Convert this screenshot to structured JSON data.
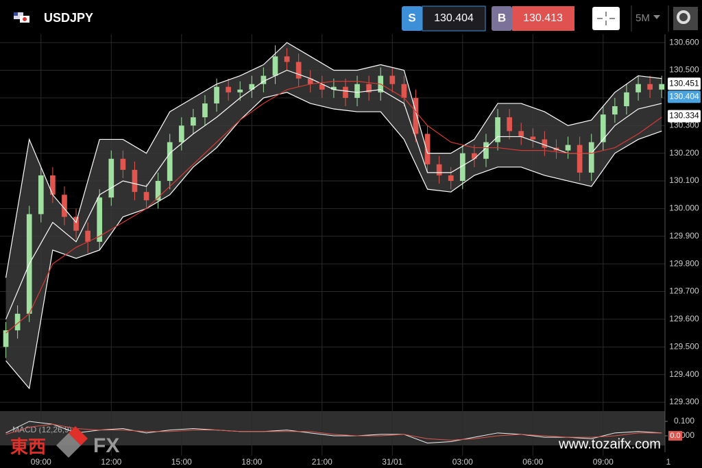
{
  "header": {
    "symbol": "USDJPY",
    "sell_label": "S",
    "sell_price": "130.404",
    "buy_label": "B",
    "buy_price": "130.413",
    "timeframe": "5M"
  },
  "chart_data": {
    "type": "candlestick",
    "x": [
      7.5,
      8,
      8.5,
      9,
      9.5,
      10,
      10.5,
      11,
      11.5,
      12,
      12.5,
      13,
      13.5,
      14,
      14.5,
      15,
      15.5,
      16,
      16.5,
      17,
      17.5,
      18,
      18.5,
      19,
      19.5,
      20,
      20.5,
      21,
      21.5,
      22,
      22.5,
      23,
      23.5,
      24,
      24.5,
      25,
      25.5,
      26,
      26.5,
      27,
      27.5,
      28,
      28.5,
      29,
      29.5,
      30,
      30.5,
      31,
      31.5,
      32,
      32.5,
      33,
      33.5,
      34,
      34.5,
      35,
      35.5
    ],
    "open": [
      129.5,
      129.56,
      129.62,
      129.98,
      130.12,
      130.05,
      129.97,
      129.92,
      129.88,
      130.04,
      130.18,
      130.14,
      130.06,
      130.03,
      130.1,
      130.24,
      130.3,
      130.33,
      130.38,
      130.44,
      130.42,
      130.43,
      130.45,
      130.48,
      130.55,
      130.53,
      130.47,
      130.45,
      130.43,
      130.44,
      130.4,
      130.45,
      130.42,
      130.48,
      130.45,
      130.4,
      130.27,
      130.16,
      130.12,
      130.1,
      130.2,
      130.18,
      130.24,
      130.33,
      130.28,
      130.26,
      130.25,
      130.22,
      130.21,
      130.23,
      130.13,
      130.24,
      130.34,
      130.37,
      130.42,
      130.45,
      130.43
    ],
    "high": [
      129.59,
      129.65,
      130.01,
      130.15,
      130.15,
      130.08,
      130.0,
      129.95,
      130.07,
      130.21,
      130.21,
      130.17,
      130.09,
      130.13,
      130.27,
      130.33,
      130.36,
      130.41,
      130.47,
      130.47,
      130.46,
      130.48,
      130.51,
      130.59,
      130.58,
      130.56,
      130.5,
      130.48,
      130.47,
      130.47,
      130.48,
      130.48,
      130.51,
      130.51,
      130.48,
      130.43,
      130.3,
      130.19,
      130.15,
      130.23,
      130.23,
      130.27,
      130.36,
      130.36,
      130.31,
      130.29,
      130.28,
      130.25,
      130.26,
      130.26,
      130.27,
      130.37,
      130.4,
      130.45,
      130.48,
      130.48,
      130.48
    ],
    "low": [
      129.46,
      129.53,
      129.59,
      129.95,
      130.02,
      129.94,
      129.89,
      129.84,
      129.85,
      130.01,
      130.11,
      130.03,
      130.0,
      130.0,
      130.07,
      130.21,
      130.27,
      130.3,
      130.35,
      130.39,
      130.39,
      130.4,
      130.42,
      130.45,
      130.5,
      130.44,
      130.42,
      130.4,
      130.4,
      130.37,
      130.37,
      130.39,
      130.39,
      130.42,
      130.37,
      130.24,
      130.13,
      130.09,
      130.07,
      130.07,
      130.15,
      130.15,
      130.21,
      130.25,
      130.23,
      130.22,
      130.19,
      130.18,
      130.18,
      130.1,
      130.1,
      130.21,
      130.31,
      130.34,
      130.39,
      130.4,
      130.4
    ],
    "close": [
      129.56,
      129.62,
      129.98,
      130.12,
      130.05,
      129.97,
      129.92,
      129.88,
      130.04,
      130.18,
      130.14,
      130.06,
      130.03,
      130.1,
      130.24,
      130.3,
      130.33,
      130.38,
      130.44,
      130.42,
      130.43,
      130.45,
      130.48,
      130.55,
      130.53,
      130.47,
      130.45,
      130.43,
      130.44,
      130.4,
      130.45,
      130.42,
      130.48,
      130.45,
      130.4,
      130.27,
      130.16,
      130.12,
      130.1,
      130.2,
      130.18,
      130.24,
      130.33,
      130.28,
      130.26,
      130.25,
      130.22,
      130.21,
      130.23,
      130.13,
      130.24,
      130.34,
      130.37,
      130.42,
      130.45,
      130.43,
      130.45
    ],
    "up_color": "#9fe0a0",
    "down_color": "#e0564f",
    "overlay_x": [
      7.5,
      8.5,
      9.5,
      10.5,
      11.5,
      12.5,
      13.5,
      14.5,
      15.5,
      16.5,
      17.5,
      18.5,
      19.5,
      20.5,
      21.5,
      22.5,
      23.5,
      24.5,
      25.5,
      26.5,
      27.5,
      28.5,
      29.5,
      30.5,
      31.5,
      32.5,
      33.5,
      34.5,
      35.5
    ],
    "overlays": [
      {
        "color": "#ffffff",
        "values": [
          129.75,
          130.25,
          130.05,
          129.95,
          130.25,
          130.25,
          130.2,
          130.35,
          130.4,
          130.45,
          130.48,
          130.52,
          130.6,
          130.55,
          130.5,
          130.5,
          130.52,
          130.5,
          130.2,
          130.2,
          130.25,
          130.38,
          130.38,
          130.35,
          130.3,
          130.32,
          130.42,
          130.48,
          130.47
        ]
      },
      {
        "color": "#ffffff",
        "values": [
          129.6,
          129.8,
          129.95,
          129.88,
          130.05,
          130.1,
          130.08,
          130.2,
          130.27,
          130.33,
          130.4,
          130.46,
          130.5,
          130.47,
          130.43,
          130.42,
          130.43,
          130.38,
          130.13,
          130.13,
          130.18,
          130.26,
          130.26,
          130.23,
          130.2,
          130.2,
          130.3,
          130.36,
          130.38
        ]
      },
      {
        "color": "#ffffff",
        "values": [
          129.45,
          129.35,
          129.85,
          129.82,
          129.85,
          129.97,
          130.0,
          130.05,
          130.15,
          130.22,
          130.32,
          130.4,
          130.42,
          130.38,
          130.36,
          130.35,
          130.35,
          130.25,
          130.07,
          130.06,
          130.12,
          130.15,
          130.15,
          130.12,
          130.1,
          130.08,
          130.2,
          130.25,
          130.28
        ]
      },
      {
        "color": "#d63a33",
        "values": [
          129.55,
          129.62,
          129.8,
          129.86,
          129.9,
          129.95,
          130.0,
          130.08,
          130.16,
          130.24,
          130.32,
          130.38,
          130.43,
          130.45,
          130.46,
          130.46,
          130.45,
          130.4,
          130.3,
          130.24,
          130.22,
          130.22,
          130.21,
          130.21,
          130.2,
          130.2,
          130.22,
          130.27,
          130.33
        ]
      }
    ],
    "band_fill": "#3a3a3a",
    "xlim": [
      7.25,
      35.64
    ],
    "ylim": [
      129.268,
      130.63
    ],
    "xticks": [
      {
        "value": 9,
        "label": "09:00"
      },
      {
        "value": 12,
        "label": "12:00"
      },
      {
        "value": 15,
        "label": "15:00"
      },
      {
        "value": 18,
        "label": "18:00"
      },
      {
        "value": 21,
        "label": "21:00"
      },
      {
        "value": 24,
        "label": "31/01"
      },
      {
        "value": 27,
        "label": "03:00"
      },
      {
        "value": 30,
        "label": "06:00"
      },
      {
        "value": 33,
        "label": "09:00"
      },
      {
        "value": 36,
        "label": "1"
      }
    ],
    "yticks": [
      {
        "value": 129.3,
        "label": "129.300"
      },
      {
        "value": 129.4,
        "label": "129.400"
      },
      {
        "value": 129.5,
        "label": "129.500"
      },
      {
        "value": 129.6,
        "label": "129.600"
      },
      {
        "value": 129.7,
        "label": "129.700"
      },
      {
        "value": 129.8,
        "label": "129.800"
      },
      {
        "value": 129.9,
        "label": "129.900"
      },
      {
        "value": 130,
        "label": "130.000"
      },
      {
        "value": 130.1,
        "label": "130.100"
      },
      {
        "value": 130.2,
        "label": "130.200"
      },
      {
        "value": 130.3,
        "label": "130.300"
      },
      {
        "value": 130.4,
        "label": "130.400"
      },
      {
        "value": 130.5,
        "label": "130.500"
      },
      {
        "value": 130.6,
        "label": "130.600"
      }
    ],
    "grid": true,
    "price_labels": [
      {
        "value": 130.451,
        "label": "130.451",
        "color": "#ffffff",
        "text_color": "#000000"
      },
      {
        "value": 130.404,
        "label": "130.404",
        "color": "#4aa3df",
        "text_color": "#ffffff"
      },
      {
        "value": 130.334,
        "label": "130.334",
        "color": "#ffffff",
        "text_color": "#000000"
      }
    ],
    "macd": {
      "title": "MACD (12,26,9)",
      "ylim": [
        -0.071,
        0.133
      ],
      "yticks": [
        {
          "value": 0.1,
          "label": "0.100"
        },
        {
          "value": 0,
          "label": "0.000"
        }
      ],
      "current": {
        "value": 0,
        "label": "0.0"
      },
      "series": [
        {
          "color": "#f0f0f0",
          "values": [
            0.02,
            0.1,
            0.08,
            0.02,
            0.04,
            0.05,
            0.02,
            0.04,
            0.05,
            0.04,
            0.03,
            0.03,
            0.04,
            0.02,
            0.0,
            0.0,
            0.01,
            0.01,
            -0.05,
            -0.04,
            -0.01,
            0.02,
            0.01,
            -0.01,
            -0.01,
            -0.02,
            0.02,
            0.03,
            0.02
          ]
        },
        {
          "color": "#e0564f",
          "values": [
            0.01,
            0.06,
            0.08,
            0.05,
            0.04,
            0.04,
            0.03,
            0.03,
            0.04,
            0.04,
            0.03,
            0.03,
            0.03,
            0.03,
            0.01,
            0.0,
            0.0,
            0.01,
            -0.02,
            -0.03,
            -0.02,
            0.0,
            0.01,
            0.0,
            -0.01,
            -0.01,
            0.0,
            0.02,
            0.02
          ]
        }
      ]
    }
  },
  "watermark": {
    "brand_cjk": "東西",
    "brand_fx": "FX",
    "url": "www.tozaifx.com"
  }
}
